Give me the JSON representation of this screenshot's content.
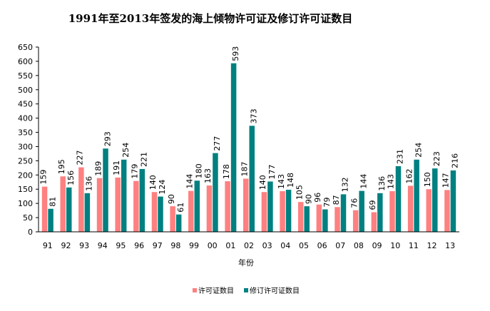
{
  "chart_data": {
    "type": "bar",
    "title": "1991年至2013年签发的海上倾物许可证及修订许可证数目",
    "xlabel": "年份",
    "ylabel": "",
    "ylim": [
      0,
      650
    ],
    "yticks": [
      0,
      50,
      100,
      150,
      200,
      250,
      300,
      350,
      400,
      450,
      500,
      550,
      600,
      650
    ],
    "grid": false,
    "legend_position": "bottom",
    "categories": [
      "91",
      "92",
      "93",
      "94",
      "95",
      "96",
      "97",
      "98",
      "99",
      "00",
      "01",
      "02",
      "03",
      "04",
      "05",
      "06",
      "07",
      "08",
      "09",
      "10",
      "11",
      "12",
      "13"
    ],
    "series": [
      {
        "name": "许可证数目",
        "color": "#ff8080",
        "values": [
          159,
          195,
          227,
          189,
          191,
          179,
          140,
          90,
          144,
          163,
          178,
          187,
          140,
          143,
          105,
          96,
          87,
          76,
          69,
          143,
          162,
          150,
          147
        ]
      },
      {
        "name": "修订许可证数目",
        "color": "#008080",
        "values": [
          81,
          156,
          136,
          293,
          254,
          221,
          124,
          61,
          180,
          277,
          593,
          373,
          177,
          148,
          90,
          79,
          132,
          144,
          136,
          231,
          254,
          223,
          216
        ]
      }
    ]
  }
}
